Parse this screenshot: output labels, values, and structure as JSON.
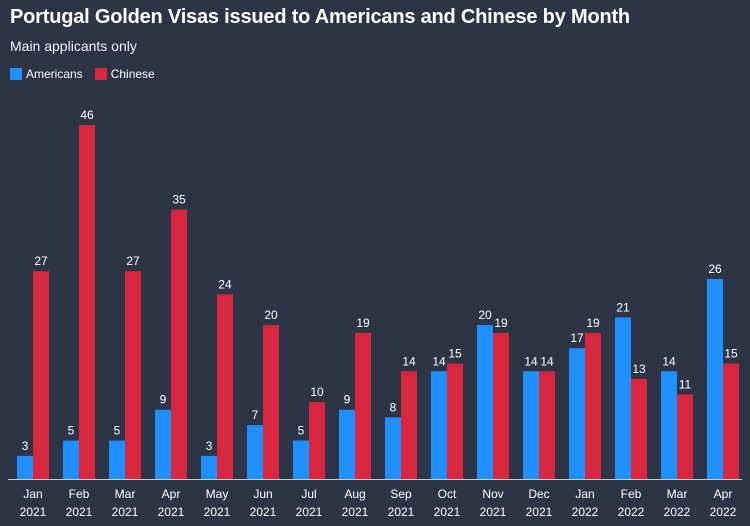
{
  "chart_data": {
    "type": "bar",
    "title": "Portugal Golden Visas issued to Americans and Chinese by Month",
    "subtitle": "Main applicants only",
    "legend_position": "top-left",
    "grid": false,
    "categories": [
      [
        "Jan",
        "2021"
      ],
      [
        "Feb",
        "2021"
      ],
      [
        "Mar",
        "2021"
      ],
      [
        "Apr",
        "2021"
      ],
      [
        "May",
        "2021"
      ],
      [
        "Jun",
        "2021"
      ],
      [
        "Jul",
        "2021"
      ],
      [
        "Aug",
        "2021"
      ],
      [
        "Sep",
        "2021"
      ],
      [
        "Oct",
        "2021"
      ],
      [
        "Nov",
        "2021"
      ],
      [
        "Dec",
        "2021"
      ],
      [
        "Jan",
        "2022"
      ],
      [
        "Feb",
        "2022"
      ],
      [
        "Mar",
        "2022"
      ],
      [
        "Apr",
        "2022"
      ]
    ],
    "series": [
      {
        "name": "Americans",
        "color": "#1e90ff",
        "values": [
          3,
          5,
          5,
          9,
          3,
          7,
          5,
          9,
          8,
          14,
          20,
          14,
          17,
          21,
          14,
          26
        ]
      },
      {
        "name": "Chinese",
        "color": "#d7263d",
        "values": [
          27,
          46,
          27,
          35,
          24,
          20,
          10,
          19,
          14,
          15,
          19,
          14,
          19,
          13,
          11,
          15
        ]
      }
    ],
    "ylim": [
      0,
      46
    ]
  }
}
